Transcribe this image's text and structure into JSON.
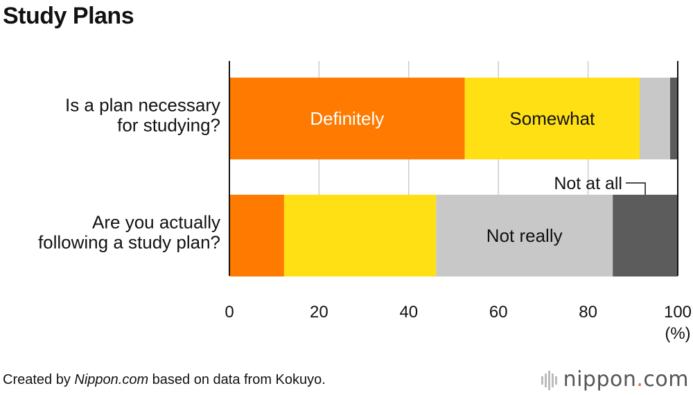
{
  "title": "Study Plans",
  "footer": {
    "prefix": "Created by ",
    "site": "Nippon.com",
    "suffix": " based on data from Kokuyo."
  },
  "brand": {
    "name": "nippon",
    "dot": ".",
    "tld": "com",
    "icon": "nippon-logo-icon"
  },
  "chart_data": {
    "type": "bar",
    "orientation": "horizontal",
    "stacked": true,
    "categories": [
      [
        "Is a plan necessary",
        "for studying?"
      ],
      [
        "Are you actually",
        "following a study plan?"
      ]
    ],
    "series": [
      {
        "name": "Definitely",
        "color": "#ff7a00",
        "text_color": "#ffffff",
        "values": [
          52.5,
          12.2
        ]
      },
      {
        "name": "Somewhat",
        "color": "#ffe014",
        "text_color": "#111111",
        "values": [
          39.0,
          33.9
        ]
      },
      {
        "name": "Not really",
        "color": "#c8c8c8",
        "text_color": "#111111",
        "values": [
          6.8,
          39.4
        ]
      },
      {
        "name": "Not at all",
        "color": "#5c5c5c",
        "text_color": "#111111",
        "values": [
          1.7,
          14.5
        ]
      }
    ],
    "segment_labels": [
      {
        "series": 0,
        "category": 0,
        "text": "Definitely"
      },
      {
        "series": 1,
        "category": 0,
        "text": "Somewhat"
      },
      {
        "series": 2,
        "category": 1,
        "text": "Not really"
      }
    ],
    "callout": {
      "series": 3,
      "category": 1,
      "text": "Not at all"
    },
    "xlim": [
      0,
      100
    ],
    "xticks": [
      0,
      20,
      40,
      60,
      80,
      100
    ],
    "xunit": "(%)",
    "grid": true,
    "grid_color": "#cccccc"
  }
}
